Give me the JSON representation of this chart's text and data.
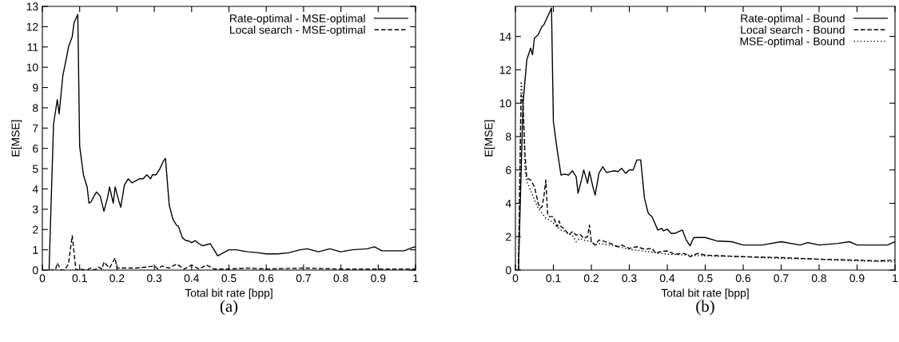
{
  "chart_data": [
    {
      "type": "line",
      "xlabel": "Total bit rate [bpp]",
      "ylabel": "E[MSE]",
      "annotations": [
        "(a)"
      ],
      "xlim": [
        0,
        1
      ],
      "ylim": [
        0,
        13
      ],
      "xticks": [
        0,
        0.1,
        0.2,
        0.3,
        0.4,
        0.5,
        0.6,
        0.7,
        0.8,
        0.9,
        1
      ],
      "yticks": [
        0,
        1,
        2,
        3,
        4,
        5,
        6,
        7,
        8,
        9,
        10,
        11,
        12,
        13
      ],
      "grid": false,
      "legend": "top right",
      "marker": "none",
      "series": [
        {
          "name": "Rate-optimal - MSE-optimal",
          "color": "#000000",
          "line_style": "solid",
          "x": [
            0.018,
            0.03,
            0.04,
            0.045,
            0.055,
            0.065,
            0.07,
            0.08,
            0.085,
            0.095,
            0.1,
            0.11,
            0.12,
            0.125,
            0.13,
            0.14,
            0.145,
            0.155,
            0.165,
            0.175,
            0.18,
            0.19,
            0.195,
            0.205,
            0.21,
            0.22,
            0.23,
            0.24,
            0.25,
            0.26,
            0.27,
            0.28,
            0.29,
            0.295,
            0.305,
            0.315,
            0.325,
            0.33,
            0.34,
            0.35,
            0.36,
            0.365,
            0.375,
            0.385,
            0.39,
            0.4,
            0.41,
            0.42,
            0.43,
            0.44,
            0.45,
            0.46,
            0.47,
            0.48,
            0.5,
            0.52,
            0.55,
            0.58,
            0.6,
            0.63,
            0.66,
            0.69,
            0.71,
            0.74,
            0.77,
            0.8,
            0.83,
            0.87,
            0.89,
            0.91,
            0.95,
            0.97,
            0.99,
            1.0
          ],
          "values": [
            0,
            7.2,
            8.4,
            7.7,
            9.6,
            10.5,
            11.0,
            11.5,
            12.2,
            12.6,
            6.1,
            4.7,
            4.1,
            3.3,
            3.35,
            3.7,
            3.85,
            3.65,
            2.9,
            3.6,
            4.1,
            3.3,
            4.1,
            3.4,
            3.1,
            4.2,
            4.5,
            4.3,
            4.4,
            4.5,
            4.5,
            4.7,
            4.5,
            4.7,
            4.7,
            5.0,
            5.4,
            5.5,
            3.2,
            2.5,
            2.2,
            2.15,
            1.6,
            1.45,
            1.45,
            1.35,
            1.45,
            1.3,
            1.2,
            1.25,
            1.3,
            1.0,
            0.7,
            0.8,
            1.0,
            1.0,
            0.9,
            0.85,
            0.8,
            0.8,
            0.85,
            1.0,
            1.05,
            0.9,
            1.05,
            0.9,
            1.0,
            1.05,
            1.15,
            0.95,
            0.95,
            0.95,
            1.1,
            1.15
          ]
        },
        {
          "name": "Local search - MSE-optimal",
          "color": "#000000",
          "line_style": "dashed",
          "x": [
            0.02,
            0.035,
            0.04,
            0.05,
            0.06,
            0.07,
            0.08,
            0.09,
            0.1,
            0.12,
            0.13,
            0.14,
            0.15,
            0.16,
            0.165,
            0.18,
            0.195,
            0.2,
            0.23,
            0.25,
            0.28,
            0.3,
            0.31,
            0.32,
            0.34,
            0.36,
            0.38,
            0.4,
            0.42,
            0.44,
            0.46,
            0.5,
            0.55,
            0.6,
            0.7,
            0.8,
            0.9,
            1.0
          ],
          "values": [
            0,
            0,
            0.35,
            0,
            0,
            0.3,
            1.7,
            0,
            0.05,
            0,
            0.1,
            0,
            0.15,
            0.05,
            0.4,
            0.1,
            0.6,
            0.1,
            0.1,
            0.1,
            0.15,
            0.2,
            0.05,
            0.2,
            0.1,
            0.3,
            0.05,
            0.25,
            0.05,
            0.25,
            0.05,
            0.05,
            0.1,
            0.05,
            0.1,
            0.05,
            0.05,
            0.05
          ]
        }
      ]
    },
    {
      "type": "line",
      "xlabel": "Total bit rate [bpp]",
      "ylabel": "E[MSE]",
      "annotations": [
        "(b)"
      ],
      "xlim": [
        0,
        1
      ],
      "ylim": [
        0,
        15.8
      ],
      "xticks": [
        0,
        0.1,
        0.2,
        0.3,
        0.4,
        0.5,
        0.6,
        0.7,
        0.8,
        0.9,
        1
      ],
      "yticks": [
        0,
        2,
        4,
        6,
        8,
        10,
        12,
        14
      ],
      "grid": false,
      "legend": "top right",
      "marker": "none",
      "series": [
        {
          "name": "Rate-optimal - Bound",
          "color": "#000000",
          "line_style": "solid",
          "x": [
            0.008,
            0.02,
            0.03,
            0.04,
            0.045,
            0.05,
            0.06,
            0.07,
            0.075,
            0.085,
            0.095,
            0.1,
            0.11,
            0.12,
            0.13,
            0.14,
            0.15,
            0.16,
            0.165,
            0.175,
            0.18,
            0.19,
            0.195,
            0.205,
            0.21,
            0.22,
            0.23,
            0.24,
            0.26,
            0.27,
            0.28,
            0.29,
            0.3,
            0.31,
            0.32,
            0.33,
            0.34,
            0.35,
            0.36,
            0.375,
            0.385,
            0.39,
            0.4,
            0.41,
            0.42,
            0.43,
            0.44,
            0.45,
            0.46,
            0.47,
            0.5,
            0.53,
            0.57,
            0.6,
            0.65,
            0.7,
            0.75,
            0.77,
            0.8,
            0.85,
            0.88,
            0.9,
            0.95,
            0.98,
            1.0
          ],
          "values": [
            0,
            10.0,
            12.6,
            13.3,
            12.9,
            13.9,
            14.1,
            14.6,
            14.7,
            15.2,
            15.7,
            8.9,
            7.2,
            5.7,
            5.75,
            5.7,
            5.95,
            5.6,
            4.6,
            5.5,
            6.0,
            5.2,
            5.9,
            4.9,
            4.5,
            5.8,
            6.2,
            5.85,
            5.95,
            5.9,
            6.1,
            5.8,
            6.0,
            6.0,
            6.6,
            6.6,
            4.3,
            3.4,
            3.2,
            2.4,
            2.5,
            2.35,
            2.45,
            2.2,
            2.2,
            2.3,
            2.4,
            1.8,
            1.45,
            1.95,
            1.95,
            1.75,
            1.7,
            1.5,
            1.5,
            1.7,
            1.5,
            1.65,
            1.5,
            1.6,
            1.7,
            1.5,
            1.5,
            1.5,
            1.7
          ]
        },
        {
          "name": "Local search - Bound",
          "color": "#000000",
          "line_style": "dashed",
          "x": [
            0.008,
            0.015,
            0.02,
            0.025,
            0.03,
            0.04,
            0.05,
            0.06,
            0.065,
            0.07,
            0.075,
            0.08,
            0.085,
            0.09,
            0.1,
            0.11,
            0.115,
            0.12,
            0.13,
            0.14,
            0.15,
            0.16,
            0.17,
            0.18,
            0.19,
            0.195,
            0.2,
            0.21,
            0.22,
            0.23,
            0.25,
            0.27,
            0.28,
            0.3,
            0.32,
            0.34,
            0.36,
            0.37,
            0.38,
            0.4,
            0.42,
            0.44,
            0.45,
            0.46,
            0.48,
            0.5,
            0.55,
            0.6,
            0.7,
            0.8,
            0.9,
            0.95,
            1.0
          ],
          "values": [
            0,
            10.5,
            10.0,
            7.0,
            5.5,
            5.4,
            5.0,
            4.0,
            3.7,
            3.8,
            4.4,
            5.4,
            3.3,
            3.2,
            3.2,
            2.6,
            2.95,
            2.6,
            2.45,
            2.1,
            2.3,
            2.1,
            2.15,
            1.9,
            2.0,
            2.7,
            1.7,
            1.5,
            1.8,
            1.75,
            1.6,
            1.4,
            1.5,
            1.3,
            1.4,
            1.25,
            1.3,
            1.0,
            1.1,
            1.15,
            0.95,
            1.0,
            0.95,
            0.8,
            1.0,
            0.9,
            0.85,
            0.8,
            0.75,
            0.65,
            0.6,
            0.55,
            0.6
          ]
        },
        {
          "name": "MSE-optimal - Bound",
          "color": "#000000",
          "line_style": "dotted",
          "x": [
            0.008,
            0.015,
            0.02,
            0.025,
            0.03,
            0.04,
            0.05,
            0.06,
            0.07,
            0.08,
            0.09,
            0.1,
            0.11,
            0.12,
            0.13,
            0.14,
            0.15,
            0.16,
            0.17,
            0.18,
            0.2,
            0.21,
            0.22,
            0.25,
            0.3,
            0.35,
            0.4,
            0.45,
            0.5,
            0.6,
            0.7,
            0.8,
            0.9,
            1.0
          ],
          "values": [
            0,
            11.3,
            10.3,
            6.0,
            5.3,
            4.8,
            4.2,
            3.7,
            3.4,
            3.1,
            3.0,
            2.8,
            2.6,
            2.4,
            2.3,
            2.2,
            2.1,
            1.7,
            1.9,
            1.8,
            1.7,
            1.5,
            1.6,
            1.5,
            1.25,
            1.1,
            0.95,
            0.9,
            0.85,
            0.8,
            0.7,
            0.65,
            0.55,
            0.5
          ]
        }
      ]
    }
  ]
}
